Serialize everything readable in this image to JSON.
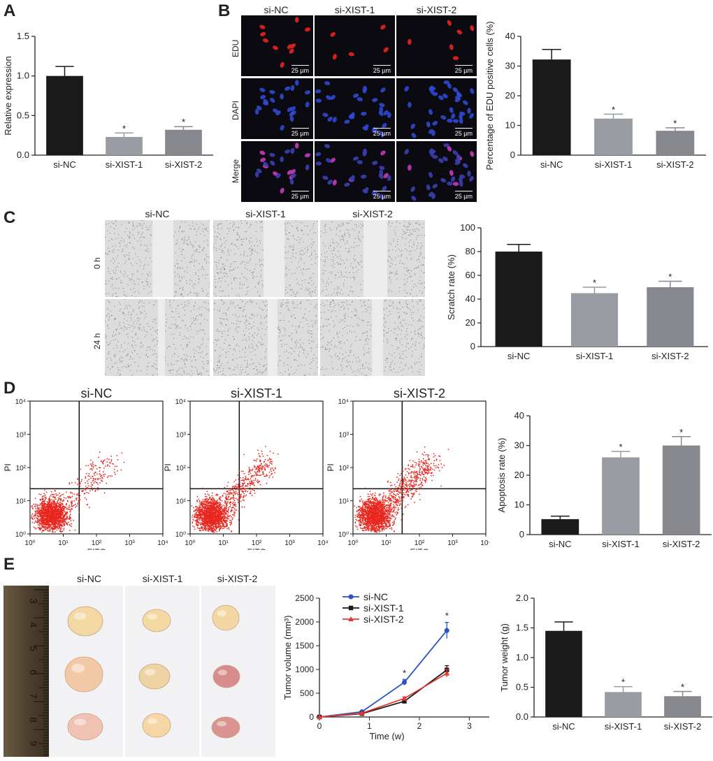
{
  "panels": {
    "A": {
      "label": "A"
    },
    "B": {
      "label": "B",
      "columns": [
        "si-NC",
        "si-XIST-1",
        "si-XIST-2"
      ],
      "rows": [
        "EDU",
        "DAPI",
        "Merge"
      ],
      "scale_bar": "25 µm"
    },
    "C": {
      "label": "C",
      "columns": [
        "si-NC",
        "si-XIST-1",
        "si-XIST-2"
      ],
      "rows": [
        "0 h",
        "24 h"
      ]
    },
    "D": {
      "label": "D",
      "plots": [
        "si-NC",
        "si-XIST-1",
        "si-XIST-2"
      ],
      "xaxis": "FITC",
      "yaxis": "PI"
    },
    "E": {
      "label": "E",
      "columns": [
        "si-NC",
        "si-XIST-1",
        "si-XIST-2"
      ],
      "ruler_marks": [
        "3",
        "4",
        "5",
        "6",
        "7",
        "8",
        "9"
      ]
    }
  },
  "chart_data": [
    {
      "id": "A",
      "type": "bar",
      "categories": [
        "si-NC",
        "si-XIST-1",
        "si-XIST-2"
      ],
      "values": [
        1.0,
        0.23,
        0.32
      ],
      "errors": [
        0.12,
        0.05,
        0.04
      ],
      "sig": [
        "",
        "*",
        "*"
      ],
      "ylabel": "Relative expression",
      "ylim": [
        0,
        1.5
      ],
      "yticks": [
        "0.0",
        "0.5",
        "1.0",
        "1.5"
      ],
      "colors": [
        "#1a1a1a",
        "#9a9ca3",
        "#86888e"
      ]
    },
    {
      "id": "B",
      "type": "bar",
      "categories": [
        "si-NC",
        "si-XIST-1",
        "si-XIST-2"
      ],
      "values": [
        32.2,
        12.3,
        8.2
      ],
      "errors": [
        3.4,
        1.5,
        1.0
      ],
      "sig": [
        "",
        "*",
        "*"
      ],
      "ylabel": "Percentage of EDU positive cells (%)",
      "ylim": [
        0,
        40
      ],
      "yticks": [
        "0",
        "10",
        "20",
        "30",
        "40"
      ],
      "colors": [
        "#1a1a1a",
        "#9a9ca3",
        "#86888e"
      ]
    },
    {
      "id": "C",
      "type": "bar",
      "categories": [
        "si-NC",
        "si-XIST-1",
        "si-XIST-2"
      ],
      "values": [
        80,
        45,
        50
      ],
      "errors": [
        6,
        5,
        5
      ],
      "sig": [
        "",
        "*",
        "*"
      ],
      "ylabel": "Scratch rate (%)",
      "ylim": [
        0,
        100
      ],
      "yticks": [
        "0",
        "20",
        "40",
        "60",
        "80",
        "100"
      ],
      "colors": [
        "#1a1a1a",
        "#9a9ca3",
        "#86888e"
      ]
    },
    {
      "id": "D",
      "type": "bar",
      "categories": [
        "si-NC",
        "si-XIST-1",
        "si-XIST-2"
      ],
      "values": [
        5.2,
        26,
        30
      ],
      "errors": [
        1.0,
        2.0,
        3.0
      ],
      "sig": [
        "",
        "*",
        "*"
      ],
      "ylabel": "Apoptosis rate (%)",
      "ylim": [
        0,
        40
      ],
      "yticks": [
        "0",
        "10",
        "20",
        "30",
        "40"
      ],
      "colors": [
        "#1a1a1a",
        "#9a9ca3",
        "#86888e"
      ]
    },
    {
      "id": "E_line",
      "type": "line",
      "xlabel": "Time  (w)",
      "ylabel": "Tumor volume (mm³)",
      "xlim": [
        0,
        3.4
      ],
      "ylim": [
        0,
        2500
      ],
      "xticks": [
        "0",
        "1",
        "2",
        "3"
      ],
      "yticks": [
        "0",
        "500",
        "1000",
        "1500",
        "2000",
        "2500"
      ],
      "series": [
        {
          "name": "si-NC",
          "color": "#2a55c0",
          "marker": "circle",
          "x": [
            0,
            0.85,
            1.7,
            2.55
          ],
          "values": [
            0,
            110,
            730,
            1820
          ],
          "errors": [
            0,
            20,
            60,
            170
          ]
        },
        {
          "name": "si-XIST-1",
          "color": "#1a1a1a",
          "marker": "square",
          "x": [
            0,
            0.85,
            1.7,
            2.55
          ],
          "values": [
            0,
            70,
            330,
            990
          ],
          "errors": [
            0,
            15,
            30,
            90
          ]
        },
        {
          "name": "si-XIST-2",
          "color": "#e23a33",
          "marker": "triangle",
          "x": [
            0,
            0.85,
            1.7,
            2.55
          ],
          "values": [
            0,
            80,
            390,
            920
          ],
          "errors": [
            0,
            15,
            30,
            80
          ]
        }
      ],
      "sig_at": [
        1.7,
        2.55
      ],
      "sig": "*"
    },
    {
      "id": "E_bar",
      "type": "bar",
      "categories": [
        "si-NC",
        "si-XIST-1",
        "si-XIST-2"
      ],
      "values": [
        1.45,
        0.42,
        0.35
      ],
      "errors": [
        0.15,
        0.09,
        0.08
      ],
      "sig": [
        "",
        "*",
        "*"
      ],
      "ylabel": "Tumor weight (g)",
      "ylim": [
        0,
        2.0
      ],
      "yticks": [
        "0.0",
        "0.5",
        "1.0",
        "1.5",
        "2.0"
      ],
      "colors": [
        "#1a1a1a",
        "#9a9ca3",
        "#86888e"
      ]
    },
    {
      "id": "D_flow",
      "type": "scatter",
      "xlabel": "FITC",
      "ylabel": "PI",
      "xticks": [
        "10⁰",
        "10¹",
        "10²",
        "10³",
        "10⁴"
      ],
      "yticks": [
        "10⁰",
        "10¹",
        "10²",
        "10³",
        "10⁴"
      ],
      "color": "#e8271f",
      "samples": [
        "si-NC",
        "si-XIST-1",
        "si-XIST-2"
      ]
    }
  ]
}
